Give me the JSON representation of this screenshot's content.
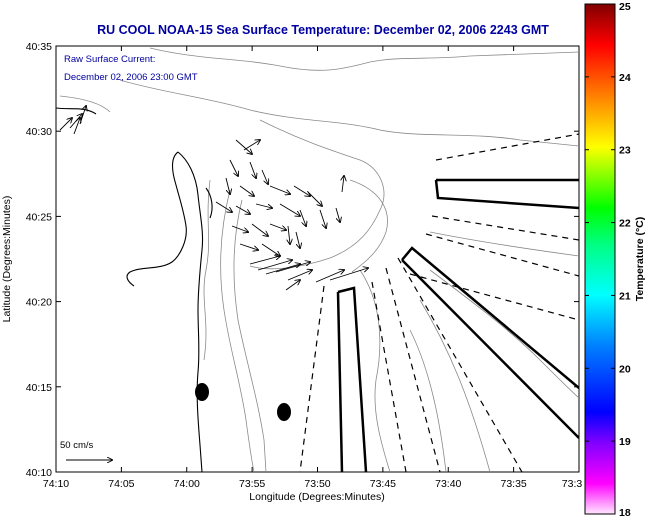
{
  "title": "RU COOL  NOAA-15  Sea Surface Temperature:  December 02, 2006 2243 GMT",
  "legend": {
    "current_label": "Raw Surface Current:",
    "current_time": "December 02, 2006 23:00 GMT",
    "scale_label": "50 cm/s"
  },
  "axes": {
    "xlabel": "Longitude (Degrees:Minutes)",
    "ylabel": "Latitude (Degrees:Minutes)",
    "x_ticks": [
      "74:10",
      "74:05",
      "74:00",
      "73:55",
      "73:50",
      "73:45",
      "73:40",
      "73:35",
      "73:3"
    ],
    "y_ticks": [
      "40:35",
      "40:30",
      "40:25",
      "40:20",
      "40:15",
      "40:10"
    ]
  },
  "colorbar": {
    "label": "Temperature (°C)",
    "ticks": [
      "25",
      "24",
      "23",
      "22",
      "21",
      "20",
      "19",
      "18"
    ],
    "min": 18,
    "max": 25
  },
  "colors": {
    "title": "#0000a0",
    "legend_text": "#0000a0",
    "contour": "#888888",
    "coast": "#000000"
  }
}
